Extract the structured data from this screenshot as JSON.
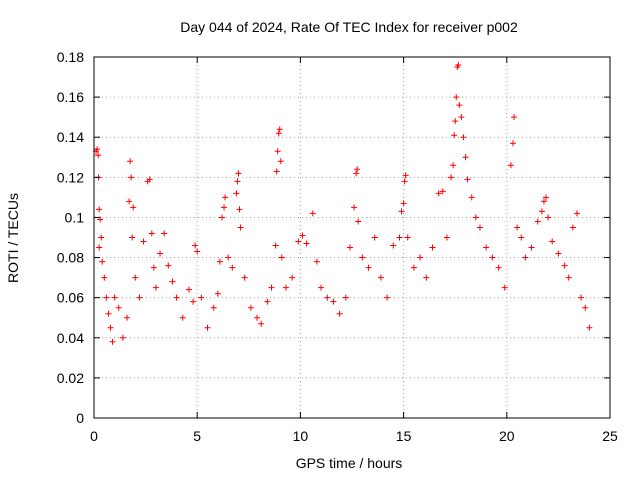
{
  "chart_data": {
    "type": "scatter",
    "title": "Day 044 of 2024, Rate Of TEC Index for receiver p002",
    "xlabel": "GPS time / hours",
    "ylabel": "ROTI / TECUs",
    "xlim": [
      0,
      25
    ],
    "ylim": [
      0,
      0.18
    ],
    "xticks": [
      0,
      5,
      10,
      15,
      20,
      25
    ],
    "xtick_labels": [
      "0",
      "5",
      "10",
      "15",
      "20",
      "25"
    ],
    "yticks": [
      0,
      0.02,
      0.04,
      0.06,
      0.08,
      0.1,
      0.12,
      0.14,
      0.16,
      0.18
    ],
    "ytick_labels": [
      "0",
      "0.02",
      "0.04",
      "0.06",
      "0.08",
      "0.1",
      "0.12",
      "0.14",
      "0.16",
      "0.18"
    ],
    "grid": true,
    "marker": "+",
    "series": [
      {
        "name": "ROTI",
        "color": "#ff0000",
        "points": [
          [
            0.1,
            0.133
          ],
          [
            0.15,
            0.134
          ],
          [
            0.2,
            0.131
          ],
          [
            0.22,
            0.12
          ],
          [
            0.25,
            0.104
          ],
          [
            0.3,
            0.099
          ],
          [
            0.35,
            0.09
          ],
          [
            0.25,
            0.085
          ],
          [
            0.4,
            0.078
          ],
          [
            0.5,
            0.07
          ],
          [
            0.6,
            0.06
          ],
          [
            0.7,
            0.052
          ],
          [
            0.8,
            0.045
          ],
          [
            0.9,
            0.038
          ],
          [
            1.0,
            0.06
          ],
          [
            1.2,
            0.055
          ],
          [
            1.4,
            0.04
          ],
          [
            1.6,
            0.05
          ],
          [
            1.75,
            0.128
          ],
          [
            1.8,
            0.12
          ],
          [
            1.7,
            0.108
          ],
          [
            1.9,
            0.105
          ],
          [
            1.85,
            0.09
          ],
          [
            2.0,
            0.07
          ],
          [
            2.2,
            0.06
          ],
          [
            2.4,
            0.088
          ],
          [
            2.6,
            0.118
          ],
          [
            2.7,
            0.119
          ],
          [
            2.8,
            0.092
          ],
          [
            2.9,
            0.075
          ],
          [
            3.0,
            0.065
          ],
          [
            3.2,
            0.082
          ],
          [
            3.4,
            0.092
          ],
          [
            3.6,
            0.076
          ],
          [
            3.8,
            0.068
          ],
          [
            4.0,
            0.06
          ],
          [
            4.3,
            0.05
          ],
          [
            4.6,
            0.064
          ],
          [
            4.8,
            0.058
          ],
          [
            4.9,
            0.086
          ],
          [
            5.0,
            0.083
          ],
          [
            5.2,
            0.06
          ],
          [
            5.5,
            0.045
          ],
          [
            5.8,
            0.055
          ],
          [
            6.0,
            0.062
          ],
          [
            6.1,
            0.078
          ],
          [
            6.2,
            0.1
          ],
          [
            6.3,
            0.105
          ],
          [
            6.35,
            0.11
          ],
          [
            6.5,
            0.08
          ],
          [
            6.7,
            0.075
          ],
          [
            6.9,
            0.112
          ],
          [
            6.95,
            0.118
          ],
          [
            7.0,
            0.122
          ],
          [
            7.05,
            0.104
          ],
          [
            7.1,
            0.095
          ],
          [
            7.3,
            0.07
          ],
          [
            7.6,
            0.055
          ],
          [
            7.9,
            0.05
          ],
          [
            8.1,
            0.047
          ],
          [
            8.4,
            0.058
          ],
          [
            8.6,
            0.065
          ],
          [
            8.8,
            0.086
          ],
          [
            8.85,
            0.123
          ],
          [
            8.9,
            0.133
          ],
          [
            8.95,
            0.142
          ],
          [
            9.0,
            0.144
          ],
          [
            9.05,
            0.128
          ],
          [
            9.1,
            0.08
          ],
          [
            9.3,
            0.065
          ],
          [
            9.6,
            0.07
          ],
          [
            9.9,
            0.088
          ],
          [
            10.1,
            0.091
          ],
          [
            10.3,
            0.087
          ],
          [
            10.6,
            0.102
          ],
          [
            10.8,
            0.078
          ],
          [
            11.0,
            0.065
          ],
          [
            11.3,
            0.06
          ],
          [
            11.6,
            0.058
          ],
          [
            11.9,
            0.052
          ],
          [
            12.2,
            0.06
          ],
          [
            12.4,
            0.085
          ],
          [
            12.6,
            0.105
          ],
          [
            12.7,
            0.122
          ],
          [
            12.75,
            0.124
          ],
          [
            12.8,
            0.098
          ],
          [
            13.0,
            0.08
          ],
          [
            13.3,
            0.075
          ],
          [
            13.6,
            0.09
          ],
          [
            13.9,
            0.07
          ],
          [
            14.2,
            0.06
          ],
          [
            14.5,
            0.086
          ],
          [
            14.8,
            0.09
          ],
          [
            14.9,
            0.103
          ],
          [
            15.0,
            0.107
          ],
          [
            15.05,
            0.118
          ],
          [
            15.1,
            0.121
          ],
          [
            15.2,
            0.09
          ],
          [
            15.5,
            0.075
          ],
          [
            15.8,
            0.08
          ],
          [
            16.1,
            0.07
          ],
          [
            16.4,
            0.085
          ],
          [
            16.7,
            0.112
          ],
          [
            16.9,
            0.113
          ],
          [
            17.1,
            0.09
          ],
          [
            17.3,
            0.12
          ],
          [
            17.4,
            0.126
          ],
          [
            17.45,
            0.141
          ],
          [
            17.5,
            0.148
          ],
          [
            17.55,
            0.16
          ],
          [
            17.6,
            0.175
          ],
          [
            17.65,
            0.176
          ],
          [
            17.7,
            0.156
          ],
          [
            17.8,
            0.15
          ],
          [
            17.9,
            0.14
          ],
          [
            18.0,
            0.13
          ],
          [
            18.1,
            0.119
          ],
          [
            18.3,
            0.11
          ],
          [
            18.5,
            0.1
          ],
          [
            18.7,
            0.095
          ],
          [
            19.0,
            0.085
          ],
          [
            19.3,
            0.08
          ],
          [
            19.6,
            0.075
          ],
          [
            19.9,
            0.065
          ],
          [
            20.2,
            0.126
          ],
          [
            20.3,
            0.137
          ],
          [
            20.35,
            0.15
          ],
          [
            20.5,
            0.095
          ],
          [
            20.7,
            0.09
          ],
          [
            20.9,
            0.08
          ],
          [
            21.2,
            0.085
          ],
          [
            21.5,
            0.098
          ],
          [
            21.7,
            0.103
          ],
          [
            21.8,
            0.108
          ],
          [
            21.9,
            0.11
          ],
          [
            22.0,
            0.1
          ],
          [
            22.2,
            0.088
          ],
          [
            22.5,
            0.082
          ],
          [
            22.8,
            0.076
          ],
          [
            23.0,
            0.07
          ],
          [
            23.2,
            0.095
          ],
          [
            23.4,
            0.102
          ],
          [
            23.6,
            0.06
          ],
          [
            23.8,
            0.055
          ],
          [
            24.0,
            0.045
          ]
        ]
      }
    ]
  }
}
